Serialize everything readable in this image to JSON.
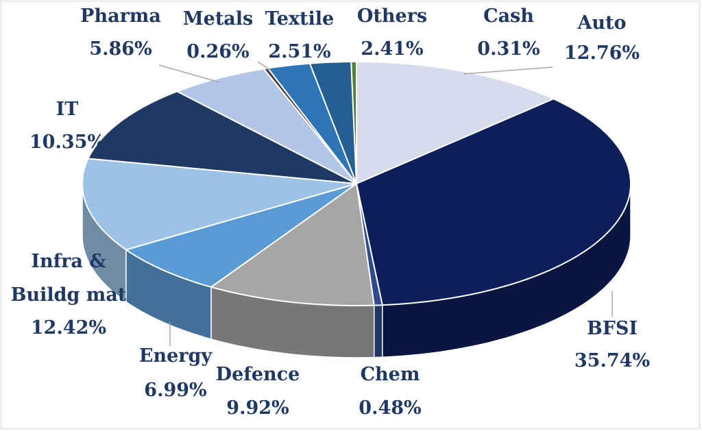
{
  "chart_data": {
    "type": "pie",
    "variant": "3d",
    "title": "",
    "legend": "none",
    "data_labels": "category name and percentage, outside",
    "slices": [
      {
        "name": "Auto",
        "value_label": "12.76%",
        "value": 12.76,
        "color": "#d6dcec"
      },
      {
        "name": "BFSI",
        "value_label": "35.74%",
        "value": 35.74,
        "color": "#0c1f5c"
      },
      {
        "name": "Chem",
        "value_label": "0.48%",
        "value": 0.48,
        "color": "#2e4a8c"
      },
      {
        "name": "Defence",
        "value_label": "9.92%",
        "value": 9.92,
        "color": "#a6a6a6"
      },
      {
        "name": "Energy",
        "value_label": "6.99%",
        "value": 6.99,
        "color": "#5b9bd5"
      },
      {
        "name": "Infra & Buildg mat",
        "value_label": "12.42%",
        "value": 12.42,
        "color": "#9cc2e5"
      },
      {
        "name": "IT",
        "value_label": "10.35%",
        "value": 10.35,
        "color": "#203864"
      },
      {
        "name": "Pharma",
        "value_label": "5.86%",
        "value": 5.86,
        "color": "#b4c6e7"
      },
      {
        "name": "Metals",
        "value_label": "0.26%",
        "value": 0.26,
        "color": "#404040"
      },
      {
        "name": "Textile",
        "value_label": "2.51%",
        "value": 2.51,
        "color": "#2e75b6"
      },
      {
        "name": "Others",
        "value_label": "2.41%",
        "value": 2.41,
        "color": "#255e91"
      },
      {
        "name": "Cash",
        "value_label": "0.31%",
        "value": 0.31,
        "color": "#548235"
      }
    ]
  }
}
